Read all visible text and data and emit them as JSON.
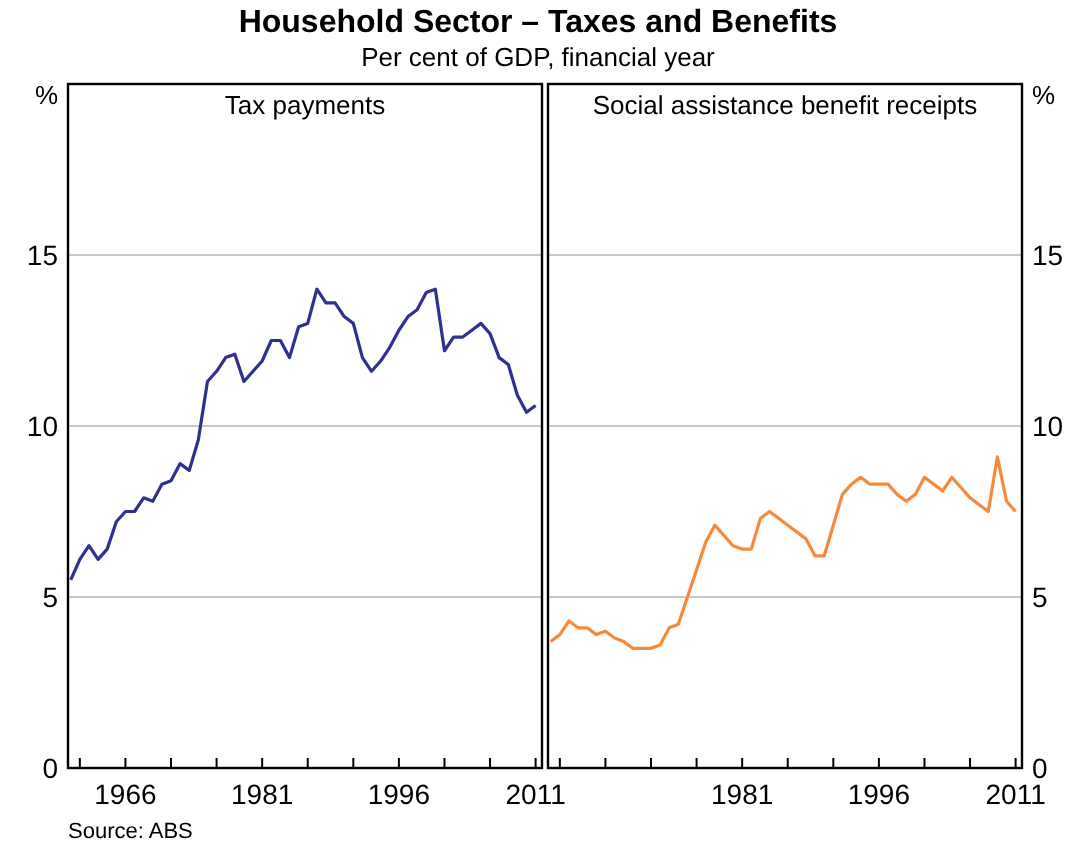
{
  "chart_data": [
    {
      "type": "line",
      "title": "Household Sector – Taxes and Benefits",
      "subtitle": "Per cent of GDP, financial year",
      "ylabel": "%",
      "annotations": [
        "Source: ABS"
      ],
      "x": [
        1960,
        1961,
        1962,
        1963,
        1964,
        1965,
        1966,
        1967,
        1968,
        1969,
        1970,
        1971,
        1972,
        1973,
        1974,
        1975,
        1976,
        1977,
        1978,
        1979,
        1980,
        1981,
        1982,
        1983,
        1984,
        1985,
        1986,
        1987,
        1988,
        1989,
        1990,
        1991,
        1992,
        1993,
        1994,
        1995,
        1996,
        1997,
        1998,
        1999,
        2000,
        2001,
        2002,
        2003,
        2004,
        2005,
        2006,
        2007,
        2008,
        2009,
        2010,
        2011
      ],
      "series": [
        {
          "name": "Tax payments",
          "color": "#2e3192",
          "values": [
            5.5,
            6.1,
            6.5,
            6.1,
            6.4,
            7.2,
            7.5,
            7.5,
            7.9,
            7.8,
            8.3,
            8.4,
            8.9,
            8.7,
            9.6,
            11.3,
            11.6,
            12.0,
            12.1,
            11.3,
            11.6,
            11.9,
            12.5,
            12.5,
            12.0,
            12.9,
            13.0,
            14.0,
            13.6,
            13.6,
            13.2,
            13.0,
            12.0,
            11.6,
            11.9,
            12.3,
            12.8,
            13.2,
            13.4,
            13.9,
            14.0,
            12.2,
            12.6,
            12.6,
            12.8,
            13.0,
            12.7,
            12.0,
            11.8,
            10.9,
            10.4,
            10.6
          ]
        }
      ],
      "xlim": [
        1959.7,
        2011.7
      ],
      "xticks": [
        {
          "value": 1961,
          "label": null
        },
        {
          "value": 1966,
          "label": "1966"
        },
        {
          "value": 1971,
          "label": null
        },
        {
          "value": 1976,
          "label": null
        },
        {
          "value": 1981,
          "label": "1981"
        },
        {
          "value": 1986,
          "label": null
        },
        {
          "value": 1991,
          "label": null
        },
        {
          "value": 1996,
          "label": "1996"
        },
        {
          "value": 2001,
          "label": null
        },
        {
          "value": 2006,
          "label": null
        },
        {
          "value": 2011,
          "label": "2011"
        }
      ],
      "ylim": [
        0,
        20
      ],
      "yticks": [
        0,
        5,
        10,
        15
      ],
      "grid": "y",
      "line_style": "solid",
      "marker": "none"
    },
    {
      "type": "line",
      "ylabel": "%",
      "x": [
        1960,
        1961,
        1962,
        1963,
        1964,
        1965,
        1966,
        1967,
        1968,
        1969,
        1970,
        1971,
        1972,
        1973,
        1974,
        1975,
        1976,
        1977,
        1978,
        1979,
        1980,
        1981,
        1982,
        1983,
        1984,
        1985,
        1986,
        1987,
        1988,
        1989,
        1990,
        1991,
        1992,
        1993,
        1994,
        1995,
        1996,
        1997,
        1998,
        1999,
        2000,
        2001,
        2002,
        2003,
        2004,
        2005,
        2006,
        2007,
        2008,
        2009,
        2010,
        2011
      ],
      "series": [
        {
          "name": "Social assistance benefit receipts",
          "color": "#f7893b",
          "values": [
            3.7,
            3.9,
            4.3,
            4.1,
            4.1,
            3.9,
            4.0,
            3.8,
            3.7,
            3.5,
            3.5,
            3.5,
            3.6,
            4.1,
            4.2,
            5.0,
            5.8,
            6.6,
            7.1,
            6.8,
            6.5,
            6.4,
            6.4,
            7.3,
            7.5,
            7.3,
            7.1,
            6.9,
            6.7,
            6.2,
            6.2,
            7.1,
            8.0,
            8.3,
            8.5,
            8.3,
            8.3,
            8.3,
            8.0,
            7.8,
            8.0,
            8.5,
            8.3,
            8.1,
            8.5,
            8.2,
            7.9,
            7.7,
            7.5,
            9.1,
            7.8,
            7.5
          ]
        }
      ],
      "xlim": [
        1959.7,
        2011.7
      ],
      "xticks": [
        {
          "value": 1961,
          "label": null
        },
        {
          "value": 1966,
          "label": null
        },
        {
          "value": 1971,
          "label": null
        },
        {
          "value": 1976,
          "label": null
        },
        {
          "value": 1981,
          "label": "1981"
        },
        {
          "value": 1986,
          "label": null
        },
        {
          "value": 1991,
          "label": null
        },
        {
          "value": 1996,
          "label": "1996"
        },
        {
          "value": 2001,
          "label": null
        },
        {
          "value": 2006,
          "label": null
        },
        {
          "value": 2011,
          "label": "2011"
        }
      ],
      "ylim": [
        0,
        20
      ],
      "yticks": [
        0,
        5,
        10,
        15
      ],
      "grid": "y",
      "line_style": "solid",
      "marker": "none"
    }
  ]
}
